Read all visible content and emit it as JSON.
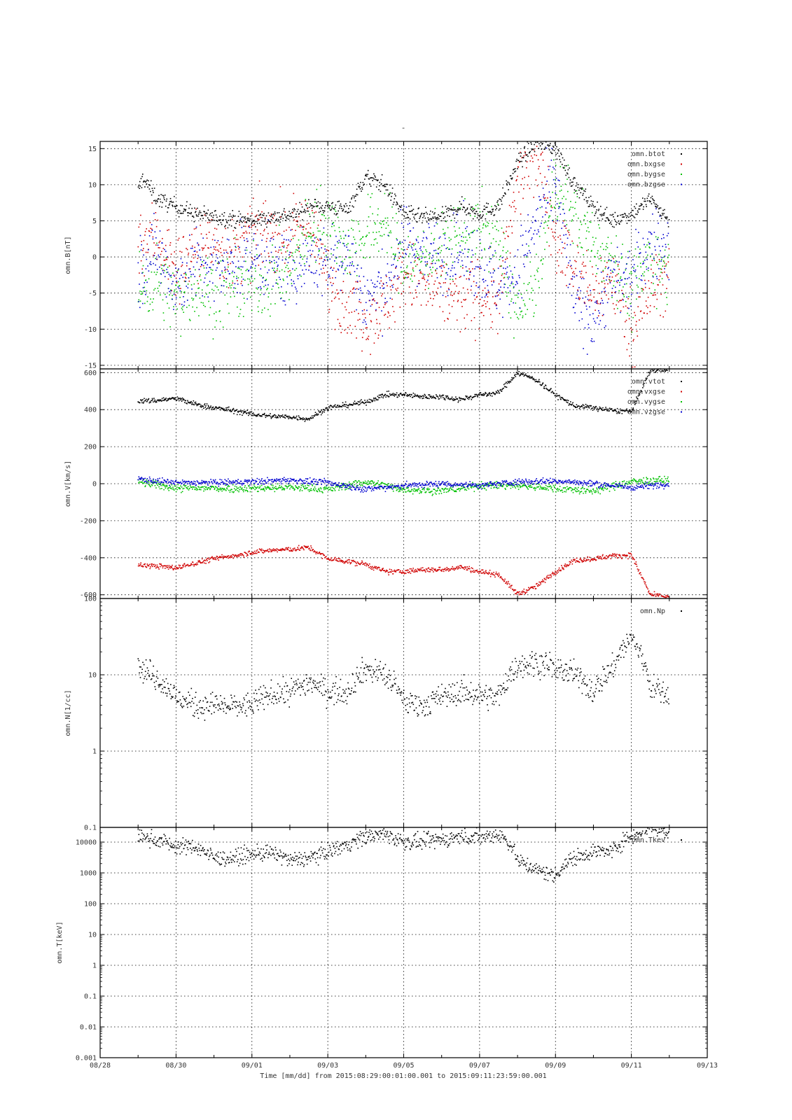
{
  "figure": {
    "title": "-",
    "xlabel": "Time [mm/dd]  from 2015:08:29:00:01:00.001  to  2015:09:11:23:59:00.001",
    "x_ticks": [
      "08/28",
      "08/30",
      "09/01",
      "09/03",
      "09/05",
      "09/07",
      "09/09",
      "09/11",
      "09/13"
    ]
  },
  "colors": {
    "black": "#000000",
    "red": "#d00000",
    "green": "#00c000",
    "blue": "#0000d0"
  },
  "chart_data": [
    {
      "type": "scatter",
      "ylabel": "omn.B[nT]",
      "ylim": [
        -15.5,
        16
      ],
      "yscale": "linear",
      "grid": true,
      "legend_placement": "top-right",
      "yticks": [
        -15,
        -10,
        -5,
        0,
        5,
        10,
        15
      ],
      "ytick_labels": [
        "-15",
        "-10",
        "-5",
        "0",
        "5",
        "10",
        "15"
      ],
      "series": [
        {
          "name": "omn.btot",
          "color": "black",
          "x": [
            "2015-08-29T00:00",
            "2015-08-29T03:00",
            "2015-08-29T12:00",
            "2015-08-30T00:00",
            "2015-08-30T12:00",
            "2015-08-31T00:00",
            "2015-09-01T00:00",
            "2015-09-01T12:00",
            "2015-09-02T06:00",
            "2015-09-02T12:00",
            "2015-09-03T00:00",
            "2015-09-03T12:00",
            "2015-09-04T00:00",
            "2015-09-04T12:00",
            "2015-09-05T00:00",
            "2015-09-05T12:00",
            "2015-09-06T00:00",
            "2015-09-06T12:00",
            "2015-09-07T00:00",
            "2015-09-07T12:00",
            "2015-09-08T00:00",
            "2015-09-08T12:00",
            "2015-09-09T00:00",
            "2015-09-09T12:00",
            "2015-09-10T00:00",
            "2015-09-10T12:00",
            "2015-09-11T00:00",
            "2015-09-11T12:00",
            "2015-09-12T00:00"
          ],
          "y": [
            9,
            11,
            8,
            7,
            6,
            5.5,
            5,
            5.5,
            6,
            7,
            7,
            6.5,
            11,
            10,
            6,
            5.5,
            5.5,
            7,
            6,
            7,
            13,
            16,
            15,
            10,
            7,
            5,
            6,
            8,
            5
          ],
          "noise": 0.8
        },
        {
          "name": "omn.bxgse",
          "color": "red",
          "x": [
            "2015-08-29T00:00",
            "2015-08-29T12:00",
            "2015-08-30T00:00",
            "2015-08-30T12:00",
            "2015-08-31T00:00",
            "2015-08-31T12:00",
            "2015-09-01T00:00",
            "2015-09-01T12:00",
            "2015-09-02T00:00",
            "2015-09-02T12:00",
            "2015-09-03T00:00",
            "2015-09-03T12:00",
            "2015-09-04T00:00",
            "2015-09-04T12:00",
            "2015-09-05T00:00",
            "2015-09-05T12:00",
            "2015-09-06T00:00",
            "2015-09-06T12:00",
            "2015-09-07T00:00",
            "2015-09-07T12:00",
            "2015-09-08T00:00",
            "2015-09-08T12:00",
            "2015-09-09T00:00",
            "2015-09-09T12:00",
            "2015-09-10T00:00",
            "2015-09-10T12:00",
            "2015-09-11T00:00",
            "2015-09-11T12:00",
            "2015-09-12T00:00"
          ],
          "y": [
            2,
            3,
            -2,
            1,
            2,
            0,
            3,
            4,
            2,
            5,
            -3,
            -6,
            -8,
            -7,
            -2,
            -4,
            -5,
            -6,
            -5,
            -6,
            10,
            15,
            3,
            -2,
            -5,
            -3,
            -10,
            -5,
            -2
          ],
          "noise": 3.5
        },
        {
          "name": "omn.bygse",
          "color": "green",
          "x": [
            "2015-08-29T00:00",
            "2015-08-29T12:00",
            "2015-08-30T00:00",
            "2015-08-30T12:00",
            "2015-08-31T00:00",
            "2015-08-31T12:00",
            "2015-09-01T00:00",
            "2015-09-01T12:00",
            "2015-09-02T00:00",
            "2015-09-02T12:00",
            "2015-09-03T00:00",
            "2015-09-03T12:00",
            "2015-09-04T00:00",
            "2015-09-04T12:00",
            "2015-09-05T00:00",
            "2015-09-05T12:00",
            "2015-09-06T00:00",
            "2015-09-06T12:00",
            "2015-09-07T00:00",
            "2015-09-07T12:00",
            "2015-09-08T00:00",
            "2015-09-08T12:00",
            "2015-09-09T00:00",
            "2015-09-09T12:00",
            "2015-09-10T00:00",
            "2015-09-10T12:00",
            "2015-09-11T00:00",
            "2015-09-11T12:00",
            "2015-09-12T00:00"
          ],
          "y": [
            -5,
            -3,
            -6,
            -4,
            -5,
            -4,
            -4,
            -3,
            -2,
            4,
            5,
            1,
            3,
            5,
            -1,
            0,
            1,
            3,
            4,
            2,
            -8,
            -3,
            10,
            6,
            2,
            0,
            -5,
            0,
            -2
          ],
          "noise": 3.5
        },
        {
          "name": "omn.bzgse",
          "color": "blue",
          "x": [
            "2015-08-29T00:00",
            "2015-08-29T12:00",
            "2015-08-30T00:00",
            "2015-08-30T12:00",
            "2015-08-31T00:00",
            "2015-08-31T12:00",
            "2015-09-01T00:00",
            "2015-09-01T12:00",
            "2015-09-02T00:00",
            "2015-09-02T12:00",
            "2015-09-03T00:00",
            "2015-09-03T12:00",
            "2015-09-04T00:00",
            "2015-09-04T12:00",
            "2015-09-05T00:00",
            "2015-09-05T12:00",
            "2015-09-06T00:00",
            "2015-09-06T12:00",
            "2015-09-07T00:00",
            "2015-09-07T12:00",
            "2015-09-08T00:00",
            "2015-09-08T12:00",
            "2015-09-09T00:00",
            "2015-09-09T12:00",
            "2015-09-10T00:00",
            "2015-09-10T12:00",
            "2015-09-11T00:00",
            "2015-09-11T12:00",
            "2015-09-12T00:00"
          ],
          "y": [
            -2,
            1,
            -4,
            -1,
            -2,
            -1,
            0,
            -1,
            -2,
            0,
            -1,
            1,
            -6,
            -4,
            2,
            1,
            0,
            1,
            -1,
            -4,
            -2,
            5,
            10,
            -6,
            -8,
            -3,
            -3,
            2,
            1
          ],
          "noise": 3.5
        }
      ]
    },
    {
      "type": "scatter",
      "ylabel": "omn.V[km/s]",
      "ylim": [
        -620,
        620
      ],
      "yscale": "linear",
      "grid": true,
      "legend_placement": "top-right",
      "yticks": [
        -600,
        -400,
        -200,
        0,
        200,
        400,
        600
      ],
      "ytick_labels": [
        "-600",
        "-400",
        "-200",
        "0",
        "200",
        "400",
        "600"
      ],
      "series": [
        {
          "name": "omn.vtot",
          "color": "black",
          "x": [
            "2015-08-29T00:00",
            "2015-08-29T12:00",
            "2015-08-30T00:00",
            "2015-08-30T12:00",
            "2015-08-31T00:00",
            "2015-08-31T12:00",
            "2015-09-01T00:00",
            "2015-09-01T12:00",
            "2015-09-02T00:00",
            "2015-09-02T12:00",
            "2015-09-03T00:00",
            "2015-09-03T12:00",
            "2015-09-04T00:00",
            "2015-09-04T12:00",
            "2015-09-05T00:00",
            "2015-09-05T12:00",
            "2015-09-06T00:00",
            "2015-09-06T12:00",
            "2015-09-07T00:00",
            "2015-09-07T12:00",
            "2015-09-08T00:00",
            "2015-09-08T12:00",
            "2015-09-09T00:00",
            "2015-09-09T12:00",
            "2015-09-10T00:00",
            "2015-09-10T12:00",
            "2015-09-11T00:00",
            "2015-09-11T12:00",
            "2015-09-12T00:00"
          ],
          "y": [
            445,
            450,
            460,
            430,
            410,
            395,
            375,
            365,
            360,
            350,
            410,
            425,
            440,
            480,
            480,
            470,
            470,
            455,
            480,
            490,
            600,
            560,
            480,
            420,
            410,
            395,
            390,
            610,
            620
          ],
          "noise": 10
        },
        {
          "name": "omn.vxgse",
          "color": "red",
          "x": [
            "2015-08-29T00:00",
            "2015-08-29T12:00",
            "2015-08-30T00:00",
            "2015-08-30T12:00",
            "2015-08-31T00:00",
            "2015-08-31T12:00",
            "2015-09-01T00:00",
            "2015-09-01T12:00",
            "2015-09-02T00:00",
            "2015-09-02T12:00",
            "2015-09-03T00:00",
            "2015-09-03T12:00",
            "2015-09-04T00:00",
            "2015-09-04T12:00",
            "2015-09-05T00:00",
            "2015-09-05T12:00",
            "2015-09-06T00:00",
            "2015-09-06T12:00",
            "2015-09-07T00:00",
            "2015-09-07T12:00",
            "2015-09-08T00:00",
            "2015-09-08T12:00",
            "2015-09-09T00:00",
            "2015-09-09T12:00",
            "2015-09-10T00:00",
            "2015-09-10T12:00",
            "2015-09-11T00:00",
            "2015-09-11T12:00",
            "2015-09-12T00:00"
          ],
          "y": [
            -440,
            -445,
            -455,
            -430,
            -405,
            -390,
            -370,
            -360,
            -355,
            -345,
            -405,
            -420,
            -435,
            -475,
            -475,
            -465,
            -465,
            -450,
            -475,
            -490,
            -595,
            -555,
            -475,
            -415,
            -405,
            -390,
            -385,
            -600,
            -610
          ],
          "noise": 10
        },
        {
          "name": "omn.vygse",
          "color": "green",
          "x": [
            "2015-08-29T00:00",
            "2015-08-30T00:00",
            "2015-08-31T00:00",
            "2015-09-01T00:00",
            "2015-09-02T00:00",
            "2015-09-03T00:00",
            "2015-09-04T00:00",
            "2015-09-05T00:00",
            "2015-09-06T00:00",
            "2015-09-07T00:00",
            "2015-09-08T00:00",
            "2015-09-09T00:00",
            "2015-09-10T00:00",
            "2015-09-11T00:00",
            "2015-09-12T00:00"
          ],
          "y": [
            10,
            -25,
            -25,
            -25,
            -20,
            -30,
            10,
            -30,
            -40,
            -10,
            -10,
            -25,
            -40,
            10,
            20
          ],
          "noise": 15
        },
        {
          "name": "omn.vzgse",
          "color": "blue",
          "x": [
            "2015-08-29T00:00",
            "2015-08-30T00:00",
            "2015-08-31T00:00",
            "2015-09-01T00:00",
            "2015-09-02T00:00",
            "2015-09-03T00:00",
            "2015-09-04T00:00",
            "2015-09-05T00:00",
            "2015-09-06T00:00",
            "2015-09-07T00:00",
            "2015-09-08T00:00",
            "2015-09-09T00:00",
            "2015-09-10T00:00",
            "2015-09-11T00:00",
            "2015-09-12T00:00"
          ],
          "y": [
            25,
            5,
            5,
            10,
            20,
            5,
            -30,
            -10,
            0,
            -10,
            10,
            15,
            0,
            -20,
            0
          ],
          "noise": 12
        }
      ]
    },
    {
      "type": "scatter",
      "ylabel": "omn.N[1/cc]",
      "ylim": [
        0.1,
        100
      ],
      "yscale": "log",
      "grid": true,
      "legend_placement": "top-right",
      "yticks": [
        0.1,
        1,
        10,
        100
      ],
      "ytick_labels": [
        "0.1",
        "1",
        "10",
        "100"
      ],
      "series": [
        {
          "name": "omn.Np",
          "color": "black",
          "x": [
            "2015-08-29T00:00",
            "2015-08-29T12:00",
            "2015-08-30T00:00",
            "2015-08-30T12:00",
            "2015-08-31T00:00",
            "2015-08-31T12:00",
            "2015-09-01T00:00",
            "2015-09-01T12:00",
            "2015-09-02T00:00",
            "2015-09-02T12:00",
            "2015-09-03T00:00",
            "2015-09-03T12:00",
            "2015-09-04T00:00",
            "2015-09-04T12:00",
            "2015-09-05T00:00",
            "2015-09-05T12:00",
            "2015-09-06T00:00",
            "2015-09-06T12:00",
            "2015-09-07T00:00",
            "2015-09-07T12:00",
            "2015-09-08T00:00",
            "2015-09-08T12:00",
            "2015-09-09T00:00",
            "2015-09-09T12:00",
            "2015-09-10T00:00",
            "2015-09-10T12:00",
            "2015-09-11T00:00",
            "2015-09-11T12:00",
            "2015-09-12T00:00"
          ],
          "y": [
            13,
            9,
            5,
            4,
            4,
            3.8,
            4,
            5.5,
            6,
            8,
            6,
            6,
            12,
            10,
            4.5,
            4,
            5,
            6,
            5.5,
            5,
            13,
            15,
            12,
            10,
            6,
            12,
            30,
            7,
            5
          ],
          "noise": 0.12
        }
      ]
    },
    {
      "type": "scatter",
      "ylabel": "omn.T[keV]",
      "ylim": [
        0.001,
        30000
      ],
      "yscale": "log",
      "grid": true,
      "legend_placement": "top-right",
      "yticks": [
        0.001,
        0.01,
        0.1,
        1,
        10,
        100,
        1000,
        10000
      ],
      "ytick_labels": [
        "0.001",
        "0.01",
        "0.1",
        "1",
        "10",
        "100",
        "1000",
        "10000"
      ],
      "series": [
        {
          "name": "omn.Tkev",
          "color": "black",
          "x": [
            "2015-08-29T00:00",
            "2015-08-29T12:00",
            "2015-08-30T00:00",
            "2015-08-30T12:00",
            "2015-08-31T00:00",
            "2015-08-31T12:00",
            "2015-09-01T00:00",
            "2015-09-01T12:00",
            "2015-09-02T00:00",
            "2015-09-02T12:00",
            "2015-09-03T00:00",
            "2015-09-03T12:00",
            "2015-09-04T00:00",
            "2015-09-04T12:00",
            "2015-09-05T00:00",
            "2015-09-05T12:00",
            "2015-09-06T00:00",
            "2015-09-06T12:00",
            "2015-09-07T00:00",
            "2015-09-07T12:00",
            "2015-09-08T00:00",
            "2015-09-08T12:00",
            "2015-09-09T00:00",
            "2015-09-09T12:00",
            "2015-09-10T00:00",
            "2015-09-10T12:00",
            "2015-09-11T00:00",
            "2015-09-11T12:00",
            "2015-09-12T00:00"
          ],
          "y": [
            15000,
            12000,
            7000,
            7000,
            3000,
            3000,
            4000,
            4500,
            2500,
            3000,
            5000,
            8000,
            15000,
            18000,
            10000,
            10000,
            12000,
            15000,
            14000,
            18000,
            2500,
            1200,
            800,
            3000,
            5000,
            5000,
            15000,
            30000,
            20000
          ],
          "noise": 0.18
        }
      ]
    }
  ]
}
